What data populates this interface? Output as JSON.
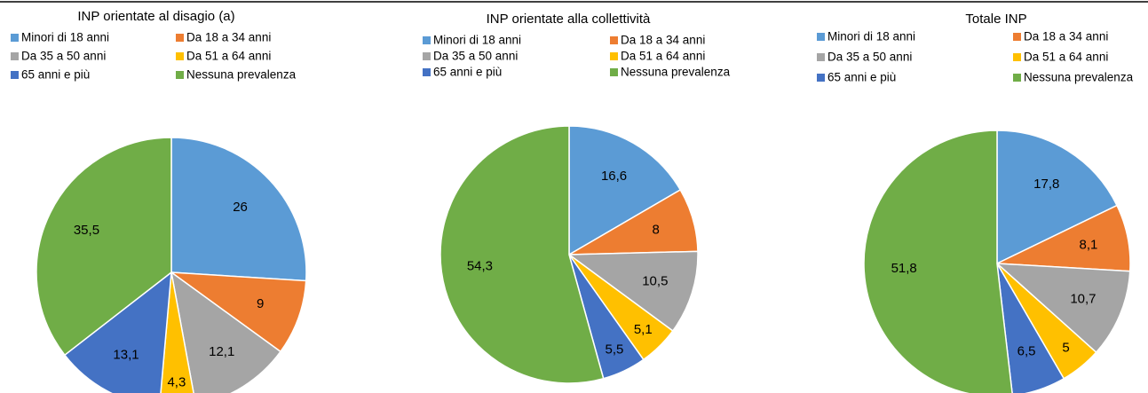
{
  "chart_data": [
    {
      "type": "pie",
      "title": "INP orientate al disagio (a)",
      "categories": [
        "Minori di 18 anni",
        "Da 18 a 34 anni",
        "Da 35 a 50 anni",
        "Da 51 a 64 anni",
        "65 anni e più",
        "Nessuna prevalenza"
      ],
      "values": [
        26,
        9,
        12.1,
        4.3,
        13.1,
        35.5
      ],
      "value_labels": [
        "26",
        "9",
        "12,1",
        "4,3",
        "13,1",
        "35,5"
      ],
      "colors": [
        "#5b9bd5",
        "#ed7d31",
        "#a5a5a5",
        "#ffc000",
        "#4472c4",
        "#70ad47"
      ]
    },
    {
      "type": "pie",
      "title": "INP orientate alla collettività",
      "categories": [
        "Minori di 18 anni",
        "Da 18 a 34 anni",
        "Da 35 a 50 anni",
        "Da 51 a 64 anni",
        "65 anni e più",
        "Nessuna prevalenza"
      ],
      "values": [
        16.6,
        8,
        10.5,
        5.1,
        5.5,
        54.3
      ],
      "value_labels": [
        "16,6",
        "8",
        "10,5",
        "5,1",
        "5,5",
        "54,3"
      ],
      "colors": [
        "#5b9bd5",
        "#ed7d31",
        "#a5a5a5",
        "#ffc000",
        "#4472c4",
        "#70ad47"
      ]
    },
    {
      "type": "pie",
      "title": "Totale INP",
      "categories": [
        "Minori di 18 anni",
        "Da 18 a 34 anni",
        "Da 35 a 50 anni",
        "Da 51 a 64 anni",
        "65 anni e più",
        "Nessuna prevalenza"
      ],
      "values": [
        17.8,
        8.1,
        10.7,
        5,
        6.5,
        51.8
      ],
      "value_labels": [
        "17,8",
        "8,1",
        "10,7",
        "5",
        "6,5",
        "51,8"
      ],
      "colors": [
        "#5b9bd5",
        "#ed7d31",
        "#a5a5a5",
        "#ffc000",
        "#4472c4",
        "#70ad47"
      ]
    }
  ]
}
